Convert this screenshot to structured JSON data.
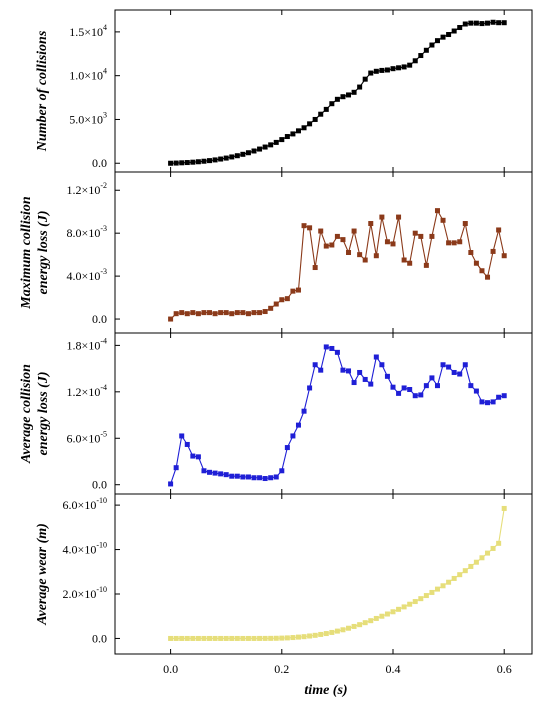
{
  "xlabel": "time (s)",
  "x_ticks": [
    "0.0",
    "0.2",
    "0.4",
    "0.6"
  ],
  "chart_data": [
    {
      "type": "line",
      "panel": 1,
      "ylabel": "Number of collisions",
      "color": "#000000",
      "xlim": [
        -0.1,
        0.65
      ],
      "ylim": [
        -1000,
        17500
      ],
      "y_ticks": [
        0,
        5000,
        10000,
        15000
      ],
      "y_tick_labels": [
        {
          "mant": "0.0",
          "exp": ""
        },
        {
          "mant": "5.0×10",
          "exp": "3"
        },
        {
          "mant": "1.0×10",
          "exp": "4"
        },
        {
          "mant": "1.5×10",
          "exp": "4"
        }
      ],
      "x": [
        0.0,
        0.01,
        0.02,
        0.03,
        0.04,
        0.05,
        0.06,
        0.07,
        0.08,
        0.09,
        0.1,
        0.11,
        0.12,
        0.13,
        0.14,
        0.15,
        0.16,
        0.17,
        0.18,
        0.19,
        0.2,
        0.21,
        0.22,
        0.23,
        0.24,
        0.25,
        0.26,
        0.27,
        0.28,
        0.29,
        0.3,
        0.31,
        0.32,
        0.33,
        0.34,
        0.35,
        0.36,
        0.37,
        0.38,
        0.39,
        0.4,
        0.41,
        0.42,
        0.43,
        0.44,
        0.45,
        0.46,
        0.47,
        0.48,
        0.49,
        0.5,
        0.51,
        0.52,
        0.53,
        0.54,
        0.55,
        0.56,
        0.57,
        0.58,
        0.59,
        0.6
      ],
      "y": [
        0,
        20,
        50,
        80,
        120,
        170,
        230,
        300,
        380,
        480,
        590,
        720,
        860,
        1020,
        1200,
        1400,
        1620,
        1850,
        2100,
        2380,
        2700,
        3050,
        3350,
        3700,
        4050,
        4500,
        5000,
        5600,
        6150,
        6800,
        7300,
        7600,
        7800,
        8100,
        8700,
        9600,
        10300,
        10500,
        10600,
        10650,
        10800,
        10900,
        11000,
        11200,
        11700,
        12300,
        12900,
        13500,
        14000,
        14400,
        14700,
        15100,
        15500,
        15900,
        16000,
        16000,
        15950,
        16000,
        16100,
        16050,
        16050
      ],
      "marker": "square"
    },
    {
      "type": "line",
      "panel": 2,
      "ylabel": "Maximum collision energy loss (J)",
      "ylabel_lines": [
        "Maximum collision",
        "energy loss (J)"
      ],
      "color": "#8b3a1a",
      "xlim": [
        -0.1,
        0.65
      ],
      "ylim": [
        -0.0013,
        0.0137
      ],
      "y_ticks": [
        0,
        0.004,
        0.008,
        0.012
      ],
      "y_tick_labels": [
        {
          "mant": "0.0",
          "exp": ""
        },
        {
          "mant": "4.0×10",
          "exp": "-3"
        },
        {
          "mant": "8.0×10",
          "exp": "-3"
        },
        {
          "mant": "1.2×10",
          "exp": "-2"
        }
      ],
      "x": [
        0.0,
        0.01,
        0.02,
        0.03,
        0.04,
        0.05,
        0.06,
        0.07,
        0.08,
        0.09,
        0.1,
        0.11,
        0.12,
        0.13,
        0.14,
        0.15,
        0.16,
        0.17,
        0.18,
        0.19,
        0.2,
        0.21,
        0.22,
        0.23,
        0.24,
        0.25,
        0.26,
        0.27,
        0.28,
        0.29,
        0.3,
        0.31,
        0.32,
        0.33,
        0.34,
        0.35,
        0.36,
        0.37,
        0.38,
        0.39,
        0.4,
        0.41,
        0.42,
        0.43,
        0.44,
        0.45,
        0.46,
        0.47,
        0.48,
        0.49,
        0.5,
        0.51,
        0.52,
        0.53,
        0.54,
        0.55,
        0.56,
        0.57,
        0.58,
        0.59,
        0.6
      ],
      "y": [
        0.0,
        0.0005,
        0.0006,
        0.0005,
        0.0006,
        0.0005,
        0.0006,
        0.0006,
        0.0005,
        0.0006,
        0.0006,
        0.0005,
        0.0006,
        0.0006,
        0.0005,
        0.0006,
        0.0006,
        0.0007,
        0.001,
        0.0014,
        0.0018,
        0.0019,
        0.0026,
        0.0027,
        0.0087,
        0.0085,
        0.0048,
        0.0082,
        0.0068,
        0.0069,
        0.0077,
        0.0074,
        0.0062,
        0.0082,
        0.006,
        0.0055,
        0.0089,
        0.0059,
        0.0095,
        0.0072,
        0.007,
        0.0095,
        0.0055,
        0.0052,
        0.008,
        0.0077,
        0.005,
        0.0077,
        0.0101,
        0.0092,
        0.0071,
        0.0071,
        0.0072,
        0.0089,
        0.0062,
        0.0052,
        0.0045,
        0.0039,
        0.0063,
        0.0083,
        0.0059
      ],
      "marker": "square"
    },
    {
      "type": "line",
      "panel": 3,
      "ylabel": "Average collision energy loss (J)",
      "ylabel_lines": [
        "Average collision",
        "energy loss (J)"
      ],
      "color": "#1f1fd6",
      "xlim": [
        -0.1,
        0.65
      ],
      "ylim": [
        -1.2e-05,
        0.000196
      ],
      "y_ticks": [
        0,
        6e-05,
        0.00012,
        0.00018
      ],
      "y_tick_labels": [
        {
          "mant": "0.0",
          "exp": ""
        },
        {
          "mant": "6.0×10",
          "exp": "-5"
        },
        {
          "mant": "1.2×10",
          "exp": "-4"
        },
        {
          "mant": "1.8×10",
          "exp": "-4"
        }
      ],
      "x": [
        0.0,
        0.01,
        0.02,
        0.03,
        0.04,
        0.05,
        0.06,
        0.07,
        0.08,
        0.09,
        0.1,
        0.11,
        0.12,
        0.13,
        0.14,
        0.15,
        0.16,
        0.17,
        0.18,
        0.19,
        0.2,
        0.21,
        0.22,
        0.23,
        0.24,
        0.25,
        0.26,
        0.27,
        0.28,
        0.29,
        0.3,
        0.31,
        0.32,
        0.33,
        0.34,
        0.35,
        0.36,
        0.37,
        0.38,
        0.39,
        0.4,
        0.41,
        0.42,
        0.43,
        0.44,
        0.45,
        0.46,
        0.47,
        0.48,
        0.49,
        0.5,
        0.51,
        0.52,
        0.53,
        0.54,
        0.55,
        0.56,
        0.57,
        0.58,
        0.59,
        0.6
      ],
      "y": [
        1e-06,
        2.2e-05,
        6.3e-05,
        5.2e-05,
        3.7e-05,
        3.6e-05,
        1.8e-05,
        1.6e-05,
        1.5e-05,
        1.4e-05,
        1.3e-05,
        1.1e-05,
        1.1e-05,
        1e-05,
        1e-05,
        9e-06,
        9e-06,
        8e-06,
        9e-06,
        1e-05,
        1.8e-05,
        4.8e-05,
        6.3e-05,
        7.7e-05,
        9.5e-05,
        0.000125,
        0.000155,
        0.000148,
        0.000178,
        0.000176,
        0.000171,
        0.000148,
        0.000147,
        0.000132,
        0.000145,
        0.000136,
        0.00013,
        0.000165,
        0.000155,
        0.00014,
        0.000126,
        0.000118,
        0.000125,
        0.000123,
        0.000115,
        0.000116,
        0.000128,
        0.000138,
        0.000128,
        0.000155,
        0.000152,
        0.000145,
        0.000143,
        0.000155,
        0.000128,
        0.000121,
        0.000107,
        0.000106,
        0.000107,
        0.000113,
        0.000115
      ],
      "marker": "square"
    },
    {
      "type": "line",
      "panel": 4,
      "ylabel": "Average wear (m)",
      "color": "#e6de7a",
      "xlim": [
        -0.1,
        0.65
      ],
      "ylim": [
        -7e-11,
        6.5e-10
      ],
      "y_ticks": [
        0,
        2e-10,
        4e-10,
        6e-10
      ],
      "y_tick_labels": [
        {
          "mant": "0.0",
          "exp": ""
        },
        {
          "mant": "2.0×10",
          "exp": "-10"
        },
        {
          "mant": "4.0×10",
          "exp": "-10"
        },
        {
          "mant": "6.0×10",
          "exp": "-10"
        }
      ],
      "x": [
        0.0,
        0.01,
        0.02,
        0.03,
        0.04,
        0.05,
        0.06,
        0.07,
        0.08,
        0.09,
        0.1,
        0.11,
        0.12,
        0.13,
        0.14,
        0.15,
        0.16,
        0.17,
        0.18,
        0.19,
        0.2,
        0.21,
        0.22,
        0.23,
        0.24,
        0.25,
        0.26,
        0.27,
        0.28,
        0.29,
        0.3,
        0.31,
        0.32,
        0.33,
        0.34,
        0.35,
        0.36,
        0.37,
        0.38,
        0.39,
        0.4,
        0.41,
        0.42,
        0.43,
        0.44,
        0.45,
        0.46,
        0.47,
        0.48,
        0.49,
        0.5,
        0.51,
        0.52,
        0.53,
        0.54,
        0.55,
        0.56,
        0.57,
        0.58,
        0.59,
        0.6
      ],
      "y": [
        0,
        0,
        0,
        0,
        0,
        0,
        0,
        0,
        0,
        0,
        0,
        0,
        0,
        0,
        0,
        0,
        1e-13,
        2e-13,
        4e-13,
        8e-13,
        1.5e-12,
        2.5e-12,
        4e-12,
        6e-12,
        8e-12,
        1.1e-11,
        1.4e-11,
        1.8e-11,
        2.2e-11,
        2.7e-11,
        3.3e-11,
        3.9e-11,
        4.6e-11,
        5.4e-11,
        6.2e-11,
        7.1e-11,
        8e-11,
        9e-11,
        1e-10,
        1.1e-10,
        1.2e-10,
        1.31e-10,
        1.42e-10,
        1.54e-10,
        1.66e-10,
        1.79e-10,
        1.93e-10,
        2.07e-10,
        2.22e-10,
        2.37e-10,
        2.53e-10,
        2.7e-10,
        2.87e-10,
        3.05e-10,
        3.24e-10,
        3.43e-10,
        3.63e-10,
        3.84e-10,
        4.05e-10,
        4.28e-10,
        5.85e-10
      ],
      "marker": "square"
    }
  ]
}
